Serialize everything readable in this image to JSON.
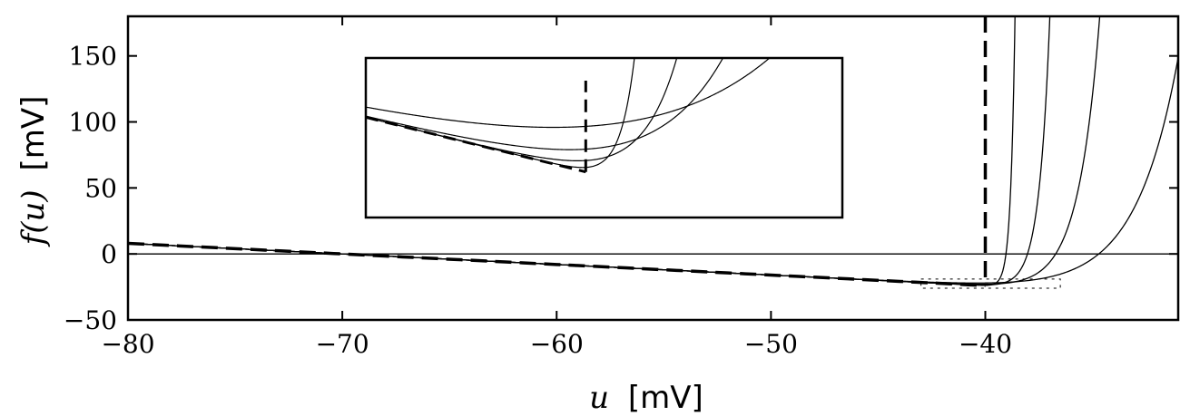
{
  "chart_data": {
    "type": "line",
    "xlabel": {
      "var": "u",
      "unit": "[mV]"
    },
    "ylabel": {
      "var": "f(u)",
      "unit": "[mV]"
    },
    "xlim": [
      -80,
      -31
    ],
    "ylim": [
      -50,
      180
    ],
    "x_ticks": [
      -80,
      -70,
      -60,
      -50,
      -40
    ],
    "y_ticks": [
      -50,
      0,
      50,
      100,
      150
    ],
    "x_tick_labels": [
      "−80",
      "−70",
      "−60",
      "−50",
      "−40"
    ],
    "y_tick_labels": [
      "−50",
      "0",
      "50",
      "100",
      "150"
    ],
    "zero_line": 0,
    "threshold_line_x": -40,
    "linear_slope": -0.8,
    "linear_intercept": -56,
    "series": [
      {
        "style": "dashed",
        "kind": "linear_to_threshold",
        "x_end": -40
      },
      {
        "style": "solid",
        "kind": "exponential",
        "delta_T": 0.2
      },
      {
        "style": "solid",
        "kind": "exponential",
        "delta_T": 0.5
      },
      {
        "style": "solid",
        "kind": "exponential",
        "delta_T": 1.0
      },
      {
        "style": "solid",
        "kind": "exponential",
        "delta_T": 2.0
      }
    ],
    "inset": {
      "xlim": [
        -43,
        -36.5
      ],
      "ylim": [
        -26,
        -19
      ],
      "shows": "zoom of minimum region near threshold"
    }
  }
}
